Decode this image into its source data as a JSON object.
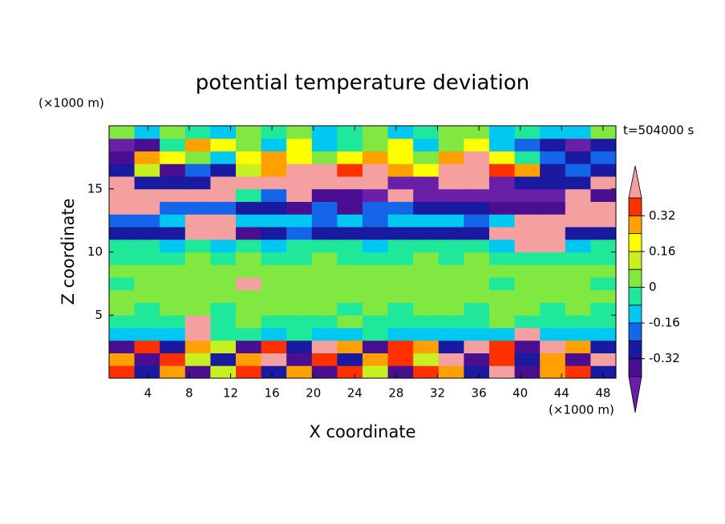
{
  "chart_data": {
    "type": "contour",
    "title": "potential temperature deviation",
    "x_label": "X coordinate",
    "y_label": "Z coordinate",
    "x_unit": "(×1000 m)",
    "y_unit": "(×1000 m)",
    "annotation": "t=504000 s",
    "xlim": [
      0.25,
      49.25
    ],
    "ylim": [
      0,
      20
    ],
    "xticks": [
      4,
      8,
      12,
      16,
      20,
      24,
      28,
      32,
      36,
      40,
      44,
      48
    ],
    "yticks": [
      5,
      10,
      15
    ],
    "levels": [
      -0.4,
      -0.32,
      -0.24,
      -0.16,
      -0.08,
      0,
      0.08,
      0.16,
      0.24,
      0.32,
      0.4
    ],
    "colors": [
      "#6a1fa8",
      "#4a0f90",
      "#1a1aa0",
      "#1565e8",
      "#00c8f0",
      "#20e89a",
      "#80e840",
      "#c8f020",
      "#ffff00",
      "#ffa000",
      "#ff3000",
      "#f4a0a0"
    ],
    "colorbar_ticks": [
      -0.32,
      -0.16,
      0,
      0.16,
      0.32
    ],
    "z": [
      [
        0.36,
        -0.28,
        0.28,
        -0.36,
        0.12,
        0.36,
        -0.28,
        0.28,
        -0.36,
        0.36,
        0.12,
        -0.36,
        0.36,
        0.28,
        -0.28,
        0.44,
        -0.36,
        0.28,
        0.36,
        -0.28
      ],
      [
        0.28,
        -0.36,
        0.36,
        0.12,
        -0.28,
        0.28,
        0.44,
        -0.36,
        0.36,
        -0.28,
        0.28,
        0.36,
        0.12,
        0.44,
        -0.36,
        0.36,
        -0.28,
        0.28,
        -0.36,
        0.44
      ],
      [
        -0.36,
        0.36,
        -0.28,
        0.28,
        0.12,
        -0.36,
        0.36,
        -0.28,
        0.44,
        0.28,
        -0.36,
        0.36,
        0.28,
        -0.28,
        0.44,
        0.36,
        -0.36,
        0.44,
        0.28,
        -0.28
      ],
      [
        -0.12,
        -0.12,
        -0.12,
        0.44,
        -0.04,
        -0.04,
        -0.12,
        -0.04,
        -0.12,
        -0.12,
        -0.04,
        -0.12,
        -0.12,
        -0.12,
        -0.12,
        -0.12,
        0.44,
        -0.12,
        -0.12,
        -0.12
      ],
      [
        -0.04,
        -0.04,
        -0.04,
        0.44,
        -0.04,
        0.04,
        -0.04,
        -0.04,
        -0.04,
        0.04,
        -0.04,
        -0.04,
        -0.04,
        -0.04,
        -0.04,
        0.04,
        -0.04,
        -0.04,
        -0.04,
        -0.04
      ],
      [
        0.04,
        -0.04,
        0.04,
        0.04,
        -0.04,
        0.04,
        0.04,
        0.04,
        0.04,
        -0.04,
        0.04,
        -0.04,
        0.04,
        0.04,
        -0.04,
        0.04,
        0.04,
        -0.04,
        0.04,
        -0.04
      ],
      [
        0.04,
        0.04,
        0.04,
        0.04,
        0.04,
        0.04,
        0.04,
        0.04,
        0.04,
        0.04,
        0.04,
        0.04,
        0.04,
        0.04,
        0.04,
        0.04,
        0.04,
        0.04,
        0.04,
        0.04
      ],
      [
        -0.04,
        0.04,
        0.04,
        0.04,
        0.04,
        0.44,
        0.04,
        0.04,
        0.04,
        0.04,
        0.04,
        0.04,
        0.04,
        0.04,
        0.04,
        -0.04,
        0.04,
        0.04,
        0.04,
        -0.04
      ],
      [
        0.04,
        0.04,
        0.04,
        0.04,
        0.04,
        0.04,
        0.04,
        0.04,
        0.04,
        0.04,
        0.04,
        0.04,
        0.04,
        0.04,
        0.04,
        0.04,
        0.04,
        0.04,
        0.04,
        0.04
      ],
      [
        -0.04,
        -0.04,
        -0.04,
        0.04,
        -0.04,
        0.04,
        -0.04,
        -0.04,
        0.04,
        -0.04,
        -0.04,
        -0.04,
        0.04,
        -0.04,
        0.04,
        -0.04,
        -0.04,
        -0.04,
        -0.04,
        -0.04
      ],
      [
        -0.04,
        -0.04,
        -0.12,
        -0.04,
        -0.12,
        -0.04,
        -0.12,
        -0.04,
        -0.04,
        -0.04,
        -0.12,
        -0.04,
        -0.04,
        -0.04,
        -0.04,
        -0.12,
        0.44,
        0.44,
        -0.12,
        -0.04
      ],
      [
        -0.28,
        -0.28,
        -0.28,
        0.44,
        0.44,
        -0.36,
        -0.28,
        -0.2,
        -0.28,
        -0.28,
        -0.28,
        -0.28,
        -0.28,
        -0.28,
        -0.28,
        0.44,
        0.44,
        0.44,
        -0.28,
        -0.28
      ],
      [
        -0.2,
        -0.2,
        -0.12,
        0.44,
        0.44,
        -0.12,
        -0.12,
        -0.12,
        -0.2,
        -0.12,
        -0.2,
        -0.12,
        -0.12,
        -0.12,
        -0.2,
        -0.12,
        0.44,
        0.44,
        0.44,
        0.44
      ],
      [
        0.44,
        0.44,
        -0.2,
        -0.2,
        -0.2,
        -0.28,
        -0.28,
        -0.36,
        -0.2,
        -0.36,
        -0.2,
        -0.2,
        -0.28,
        -0.28,
        -0.28,
        -0.36,
        -0.36,
        -0.36,
        0.44,
        0.44
      ],
      [
        0.44,
        0.44,
        0.44,
        0.44,
        0.44,
        -0.04,
        -0.2,
        0.44,
        -0.36,
        -0.36,
        -0.44,
        0.44,
        -0.44,
        -0.44,
        -0.44,
        -0.44,
        -0.44,
        -0.44,
        0.44,
        -0.36
      ],
      [
        0.44,
        -0.28,
        -0.28,
        -0.28,
        0.44,
        0.44,
        0.44,
        0.44,
        0.44,
        0.44,
        0.44,
        -0.44,
        -0.44,
        0.44,
        0.44,
        -0.44,
        -0.28,
        -0.28,
        -0.28,
        0.44
      ],
      [
        -0.28,
        0.12,
        -0.36,
        -0.2,
        -0.28,
        0.12,
        0.28,
        0.44,
        0.44,
        0.36,
        0.44,
        0.28,
        0.2,
        0.44,
        0.44,
        0.36,
        0.28,
        -0.28,
        -0.2,
        -0.28
      ],
      [
        -0.36,
        0.28,
        0.2,
        0.04,
        -0.12,
        0.2,
        0.28,
        0.2,
        0.04,
        0.2,
        0.28,
        0.2,
        0.04,
        0.28,
        0.44,
        0.2,
        -0.04,
        -0.2,
        -0.28,
        -0.2
      ],
      [
        -0.44,
        -0.36,
        -0.04,
        0.28,
        0.2,
        0.04,
        -0.12,
        0.2,
        -0.12,
        -0.04,
        0.04,
        0.2,
        -0.12,
        0.04,
        0.2,
        -0.12,
        -0.2,
        -0.28,
        -0.44,
        -0.28
      ],
      [
        0.04,
        -0.12,
        0.04,
        -0.04,
        -0.12,
        0.04,
        -0.04,
        0.04,
        -0.12,
        -0.04,
        0.04,
        -0.12,
        -0.04,
        0.04,
        0.04,
        -0.12,
        -0.04,
        -0.12,
        -0.12,
        0.04
      ]
    ]
  }
}
